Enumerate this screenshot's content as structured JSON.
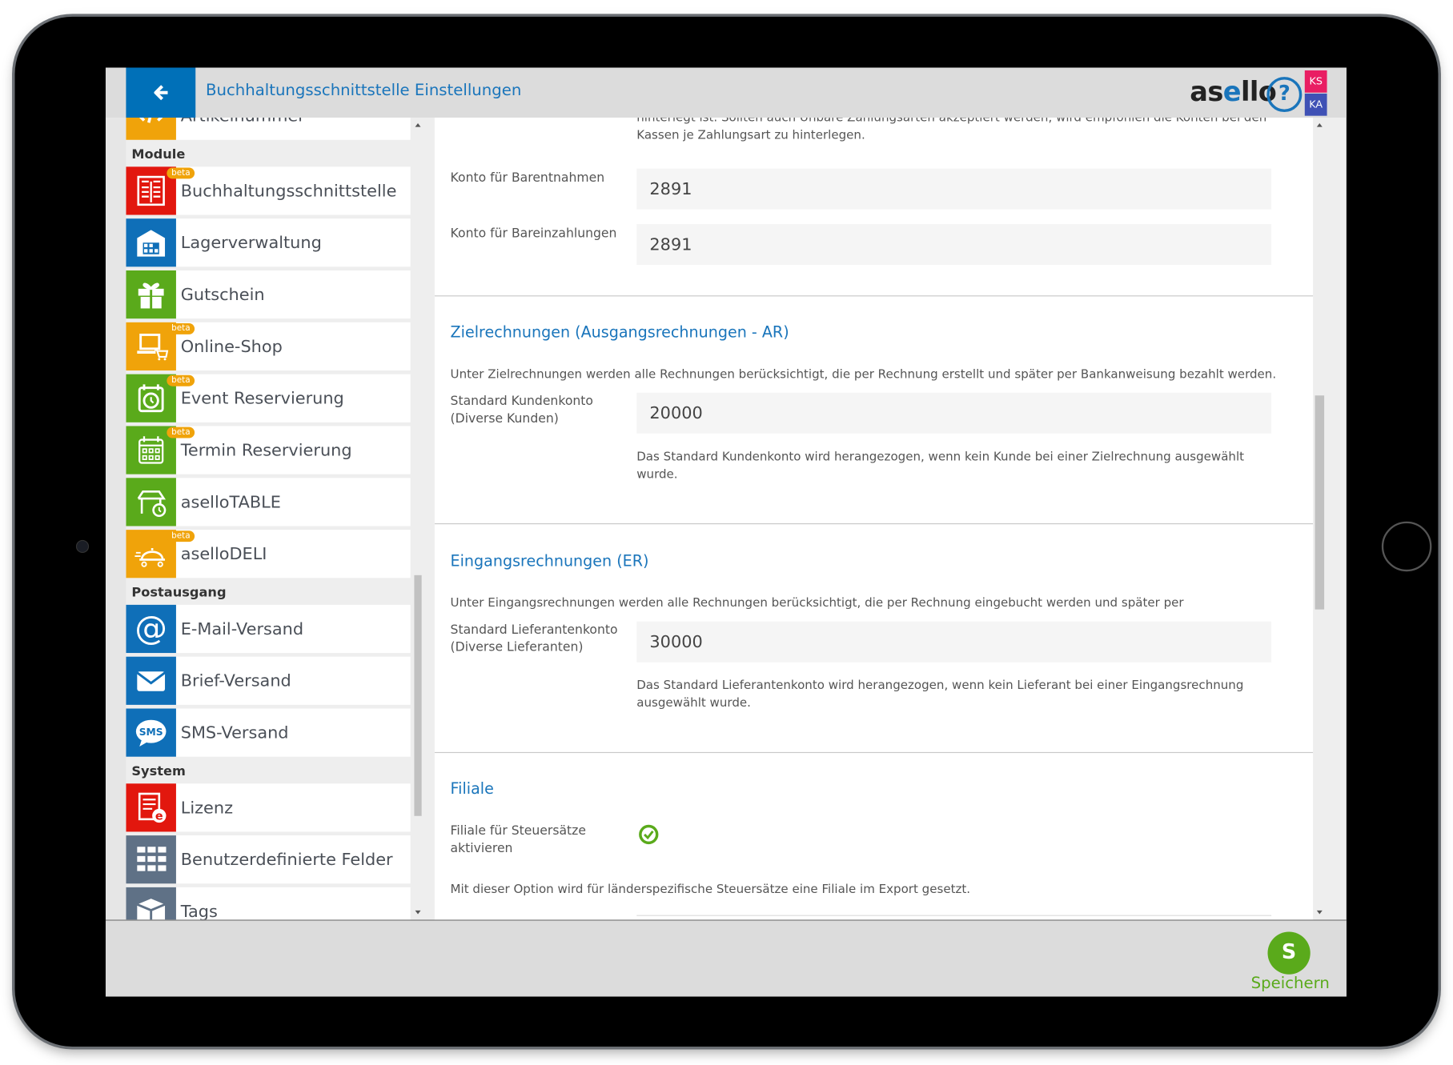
{
  "colors": {
    "brand_blue": "#0070b8",
    "red": "#e2170e",
    "blue": "#0f6fb8",
    "green": "#5aaa1b",
    "orange": "#f0a30a",
    "slate": "#5f7186"
  },
  "header": {
    "back_icon": "arrow-left-icon",
    "title": "Buchhaltungsschnittstelle Einstellungen",
    "logo": {
      "pre": "as",
      "mid": "e",
      "post": "llo"
    },
    "help_icon": "question-circle-icon",
    "user_badges": [
      "KS",
      "KA"
    ]
  },
  "sidebar": {
    "code_hint": "</",
    "entries": [
      {
        "type": "item",
        "label": "Artikelnummer",
        "icon": "code-icon",
        "color": "#f0a30a"
      },
      {
        "type": "header",
        "label": "Module"
      },
      {
        "type": "item",
        "label": "Buchhaltungsschnittstelle",
        "icon": "ledger-icon",
        "color": "#e2170e",
        "beta": "beta"
      },
      {
        "type": "item",
        "label": "Lagerverwaltung",
        "icon": "warehouse-icon",
        "color": "#0f6fb8"
      },
      {
        "type": "item",
        "label": "Gutschein",
        "icon": "gift-icon",
        "color": "#5aaa1b"
      },
      {
        "type": "item",
        "label": "Online-Shop",
        "icon": "laptop-cart-icon",
        "color": "#f0a30a",
        "beta": "beta"
      },
      {
        "type": "item",
        "label": "Event Reservierung",
        "icon": "calendar-clock-icon",
        "color": "#5aaa1b",
        "beta": "beta"
      },
      {
        "type": "item",
        "label": "Termin Reservierung",
        "icon": "calendar-icon",
        "color": "#5aaa1b",
        "beta": "beta"
      },
      {
        "type": "item",
        "label": "aselloTABLE",
        "icon": "table-clock-icon",
        "color": "#5aaa1b"
      },
      {
        "type": "item",
        "label": "aselloDELI",
        "icon": "delivery-cloche-icon",
        "color": "#f0a30a",
        "beta": "beta"
      },
      {
        "type": "header",
        "label": "Postausgang"
      },
      {
        "type": "item",
        "label": "E-Mail-Versand",
        "icon": "at-icon",
        "color": "#0f6fb8"
      },
      {
        "type": "item",
        "label": "Brief-Versand",
        "icon": "envelope-icon",
        "color": "#0f6fb8"
      },
      {
        "type": "item",
        "label": "SMS-Versand",
        "icon": "sms-bubble-icon",
        "color": "#0f6fb8"
      },
      {
        "type": "header",
        "label": "System"
      },
      {
        "type": "item",
        "label": "Lizenz",
        "icon": "license-icon",
        "color": "#e2170e"
      },
      {
        "type": "item",
        "label": "Benutzerdefinierte Felder",
        "icon": "grid-icon",
        "color": "#5f7186"
      },
      {
        "type": "item",
        "label": "Tags",
        "icon": "box-icon",
        "color": "#5f7186"
      }
    ]
  },
  "main": {
    "intro_partial_1": "hinterlegt ist. Sollten auch Unbare Zahlungsarten akzeptiert werden, wird empfohlen die Konten bei den",
    "intro_partial_2": "Kassen je Zahlungsart zu hinterlegen.",
    "barentnahmen": {
      "label": "Konto für Barentnahmen",
      "value": "2891"
    },
    "bareinzahlungen": {
      "label": "Konto für Bareinzahlungen",
      "value": "2891"
    },
    "ar": {
      "heading": "Zielrechnungen (Ausgangsrechnungen - AR)",
      "description": "Unter Zielrechnungen werden alle Rechnungen berücksichtigt, die per Rechnung erstellt und später per Bankanweisung bezahlt werden.",
      "label": "Standard Kundenkonto (Diverse Kunden)",
      "value": "20000",
      "help": "Das Standard Kundenkonto wird herangezogen, wenn kein Kunde bei einer Zielrechnung ausgewählt wurde."
    },
    "er": {
      "heading": "Eingangsrechnungen (ER)",
      "description": "Unter Eingangsrechnungen werden alle Rechnungen berücksichtigt, die per Rechnung eingebucht werden und später per",
      "label": "Standard Lieferantenkonto (Diverse Lieferanten)",
      "value": "30000",
      "help": "Das Standard Lieferantenkonto wird herangezogen, wenn kein Lieferant bei einer Eingangsrechnung ausgewählt wurde."
    },
    "filiale": {
      "heading": "Filiale",
      "label": "Filiale für Steuersätze aktivieren",
      "checked": true,
      "check_icon": "check-circle-icon",
      "description": "Mit dieser Option wird für länderspezifische Steuersätze eine Filiale im Export gesetzt."
    }
  },
  "footer": {
    "save_letter": "S",
    "save_label": "Speichern"
  }
}
